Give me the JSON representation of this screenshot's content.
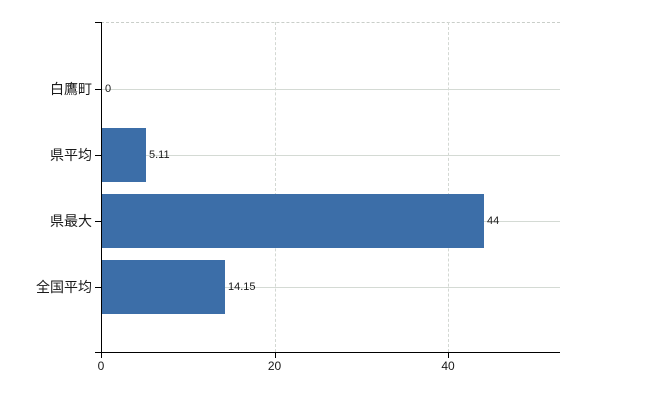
{
  "chart_data": {
    "type": "bar",
    "orientation": "horizontal",
    "title": "",
    "categories": [
      "白鷹町",
      "県平均",
      "県最大",
      "全国平均"
    ],
    "values": [
      0,
      5.11,
      44,
      14.15
    ],
    "value_labels": [
      "0",
      "5.11",
      "44",
      "14.15"
    ],
    "x_tick_labels": [
      "0",
      "20",
      "40"
    ],
    "x_tick_values": [
      0,
      20,
      40
    ],
    "xlim": [
      0,
      52.9
    ],
    "ylabel": "",
    "xlabel": "",
    "grid": "on",
    "legend": "none",
    "colors": {
      "bar": "#3C6EA8",
      "grid_h": "#d4dad4",
      "grid_v": "#d3d8d3",
      "axis": "#000000",
      "text": "#1a1a1a"
    }
  }
}
